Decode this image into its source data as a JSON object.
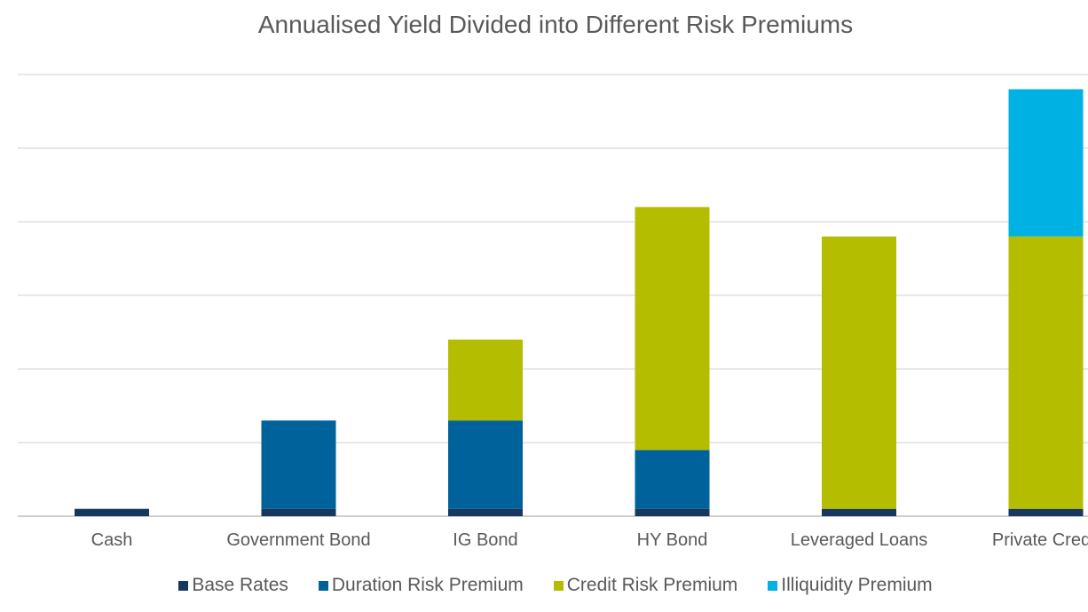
{
  "chart_data": {
    "type": "bar",
    "stacked": true,
    "title": "Annualised Yield Divided into Different Risk Premiums",
    "categories": [
      "Cash",
      "Government Bond",
      "IG Bond",
      "HY Bond",
      "Leveraged Loans",
      "Private Credit"
    ],
    "series": [
      {
        "name": "Base Rates",
        "color": "#17375E",
        "values": [
          0.1,
          0.1,
          0.1,
          0.1,
          0.1,
          0.1
        ]
      },
      {
        "name": "Duration Risk Premium",
        "color": "#00629B",
        "values": [
          0,
          1.2,
          1.2,
          0.8,
          0,
          0
        ]
      },
      {
        "name": "Credit Risk Premium",
        "color": "#B5BD00",
        "values": [
          0,
          0,
          1.1,
          3.3,
          3.7,
          3.7
        ]
      },
      {
        "name": "Illiquidity Premium",
        "color": "#00B2E3",
        "values": [
          0,
          0,
          0,
          0,
          0,
          2.0
        ]
      }
    ],
    "ylim": [
      0,
      6
    ],
    "yticks_visible": false,
    "grid": true,
    "legend_position": "bottom"
  }
}
